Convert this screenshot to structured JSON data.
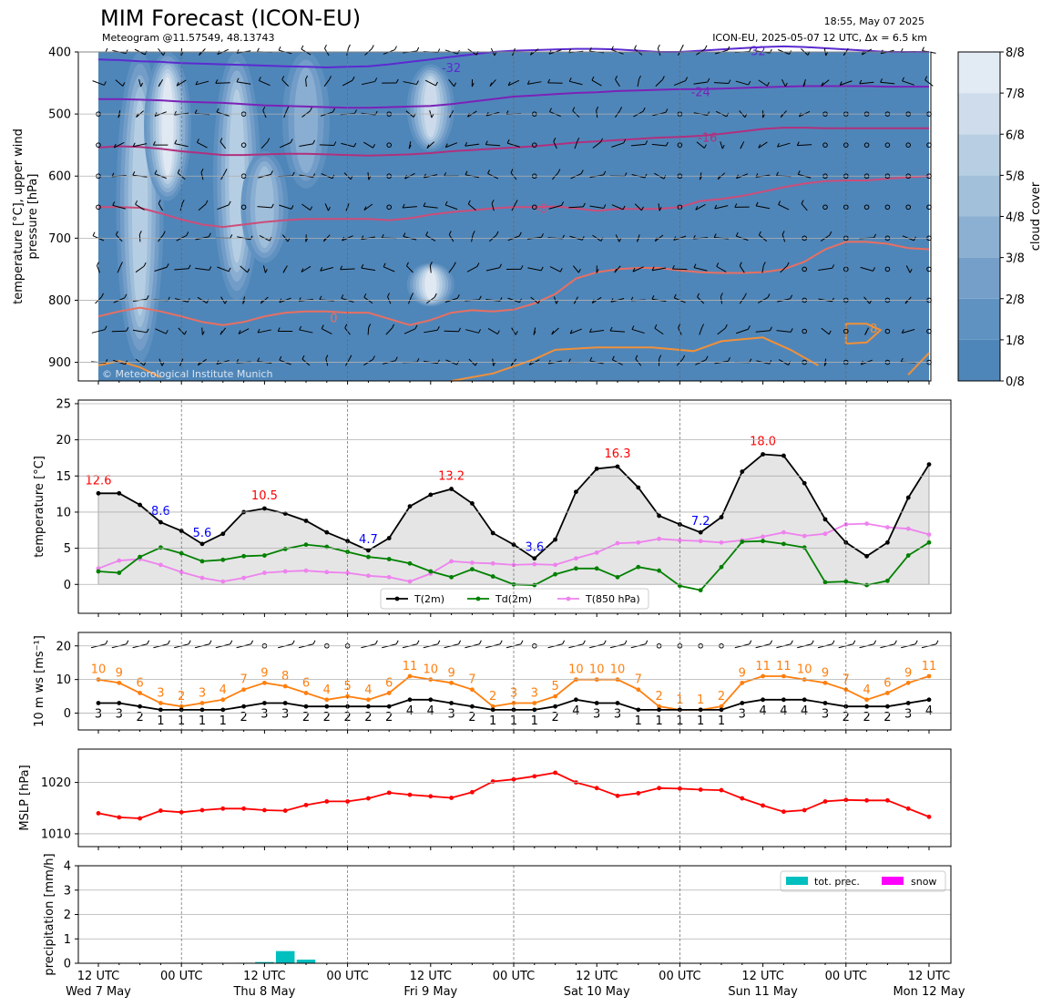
{
  "header": {
    "title": "MIM Forecast (ICON-EU)",
    "subtitle": "Meteogram @11.57549, 48.13743",
    "timestamp": "18:55, May 07 2025",
    "model_info": "ICON-EU, 2025-05-07 12 UTC, Δx = 6.5 km",
    "copyright": "© Meteorological Institute Munich"
  },
  "colors": {
    "t2m": "#000000",
    "td2m": "#008000",
    "t850": "#ee82ee",
    "mslp": "#ff0000",
    "gust": "#ff7f0e",
    "wind": "#000000",
    "tmax_label": "#ff0000",
    "tmin_label": "#0000ff",
    "precip": "#00bfbf",
    "snow": "#ff00ff",
    "cloud_dark": "#4f86b9",
    "cloud_light": "#f4f8fb"
  },
  "time_axis": {
    "tick_labels": [
      "12 UTC",
      "00 UTC",
      "12 UTC",
      "00 UTC",
      "12 UTC",
      "00 UTC",
      "12 UTC",
      "00 UTC",
      "12 UTC",
      "00 UTC",
      "12 UTC"
    ],
    "day_labels": [
      "Wed 7 May",
      "Thu 8 May",
      "Fri 9 May",
      "Sat 10 May",
      "Sun 11 May",
      "Mon 12 May"
    ],
    "step_hours": 3,
    "hours": [
      0,
      3,
      6,
      9,
      12,
      15,
      18,
      21,
      24,
      27,
      30,
      33,
      36,
      39,
      42,
      45,
      48,
      51,
      54,
      57,
      60,
      63,
      66,
      69,
      72,
      75,
      78,
      81,
      84,
      87,
      90,
      93,
      96,
      99,
      102,
      105,
      108,
      111,
      114,
      117,
      120
    ]
  },
  "chart_data": [
    {
      "type": "heatmap",
      "ylabel": "temperature [°C], upper wind\npressure [hPa]",
      "ylim": [
        930,
        400
      ],
      "yticks": [
        400,
        500,
        600,
        700,
        800,
        900
      ],
      "colorbar_label": "cloud cover",
      "colorbar_ticks": [
        "0/8",
        "1/8",
        "2/8",
        "3/8",
        "4/8",
        "5/8",
        "6/8",
        "7/8",
        "8/8"
      ],
      "isotherm_labels": [
        {
          "value": -32,
          "label": "-32",
          "color": "#5b2bd0"
        },
        {
          "value": -24,
          "label": "-24",
          "color": "#7a22b8"
        },
        {
          "value": -16,
          "label": "-16",
          "color": "#b0307e"
        },
        {
          "value": -8,
          "label": "-8",
          "color": "#cc4d7a"
        },
        {
          "value": 0,
          "label": "0",
          "color": "#e86f62"
        },
        {
          "value": 8,
          "label": "8",
          "color": "#f0903a"
        }
      ],
      "cloud_patches": [
        {
          "hour": 6,
          "p_top": 400,
          "p_bot": 900,
          "cover": 5
        },
        {
          "hour": 10,
          "p_top": 400,
          "p_bot": 640,
          "cover": 7
        },
        {
          "hour": 20,
          "p_top": 400,
          "p_bot": 800,
          "cover": 5
        },
        {
          "hour": 24,
          "p_top": 560,
          "p_bot": 740,
          "cover": 4
        },
        {
          "hour": 30,
          "p_top": 400,
          "p_bot": 620,
          "cover": 3
        },
        {
          "hour": 48,
          "p_top": 420,
          "p_bot": 560,
          "cover": 6
        },
        {
          "hour": 48,
          "p_top": 740,
          "p_bot": 810,
          "cover": 7
        }
      ],
      "isotherms": [
        {
          "value": -32,
          "p": [
            412,
            413,
            415,
            416,
            418,
            419,
            420,
            421,
            422,
            423,
            424,
            425,
            424,
            423,
            420,
            416,
            412,
            408,
            404,
            400,
            398,
            397,
            396,
            395,
            395,
            396,
            398,
            400,
            400,
            398,
            396,
            394,
            392,
            391,
            392,
            394,
            396,
            398,
            400,
            400,
            400
          ]
        },
        {
          "value": -24,
          "p": [
            476,
            476,
            477,
            478,
            480,
            481,
            482,
            484,
            486,
            487,
            488,
            489,
            490,
            490,
            489,
            488,
            487,
            484,
            480,
            476,
            472,
            470,
            468,
            466,
            465,
            463,
            462,
            461,
            460,
            460,
            459,
            458,
            457,
            456,
            455,
            455,
            455,
            455,
            456,
            456,
            456
          ]
        },
        {
          "value": -16,
          "p": [
            554,
            552,
            553,
            556,
            560,
            563,
            566,
            566,
            565,
            564,
            564,
            565,
            566,
            567,
            566,
            565,
            563,
            560,
            558,
            556,
            554,
            552,
            549,
            546,
            544,
            542,
            540,
            538,
            537,
            535,
            532,
            528,
            524,
            522,
            522,
            523,
            523,
            523,
            523,
            523,
            523
          ]
        },
        {
          "value": -8,
          "p": [
            650,
            650,
            651,
            660,
            670,
            678,
            682,
            678,
            674,
            671,
            669,
            669,
            669,
            669,
            671,
            668,
            662,
            658,
            655,
            652,
            650,
            650,
            649,
            652,
            656,
            653,
            653,
            653,
            650,
            640,
            637,
            632,
            625,
            618,
            612,
            608,
            607,
            607,
            604,
            602,
            600
          ]
        },
        {
          "value": 0,
          "p": [
            826,
            818,
            812,
            818,
            826,
            835,
            840,
            835,
            826,
            820,
            818,
            818,
            820,
            820,
            830,
            840,
            832,
            820,
            816,
            818,
            815,
            805,
            790,
            765,
            755,
            750,
            748,
            748,
            752,
            755,
            756,
            756,
            755,
            750,
            738,
            718,
            706,
            706,
            709,
            716,
            718
          ]
        }
      ],
      "wind_barbs": {
        "levels": [
          400,
          450,
          500,
          550,
          600,
          650,
          700,
          750,
          800,
          850,
          900
        ],
        "calm_symbol": "o"
      }
    },
    {
      "type": "line",
      "ylabel": "temperature [°C]",
      "ylim": [
        -4,
        25.5
      ],
      "yticks": [
        0,
        5,
        10,
        15,
        20,
        25
      ],
      "series": [
        {
          "name": "T(2m)",
          "color": "#000000",
          "values": [
            12.6,
            12.6,
            11.0,
            8.6,
            7.4,
            5.6,
            7.0,
            10.0,
            10.5,
            9.8,
            8.8,
            7.2,
            6.0,
            4.7,
            6.4,
            10.8,
            12.4,
            13.2,
            11.2,
            7.1,
            5.5,
            3.6,
            6.2,
            12.8,
            16.0,
            16.3,
            13.4,
            9.5,
            8.3,
            7.2,
            9.3,
            15.6,
            18.0,
            17.8,
            14.0,
            9.0,
            5.8,
            3.9,
            5.8,
            12.0,
            16.6
          ]
        },
        {
          "name": "Td(2m)",
          "color": "#008000",
          "values": [
            1.8,
            1.6,
            3.8,
            5.1,
            4.3,
            3.2,
            3.4,
            3.9,
            4.0,
            4.9,
            5.5,
            5.2,
            4.5,
            3.8,
            3.5,
            2.9,
            1.8,
            1.0,
            2.1,
            1.1,
            0.0,
            -0.1,
            1.4,
            2.2,
            2.2,
            1.0,
            2.4,
            1.9,
            -0.2,
            -0.8,
            2.4,
            5.9,
            6.0,
            5.6,
            5.1,
            0.3,
            0.4,
            -0.1,
            0.5,
            4.0,
            5.8
          ]
        },
        {
          "name": "T(850 hPa)",
          "color": "#ee82ee",
          "values": [
            2.2,
            3.3,
            3.5,
            2.7,
            1.7,
            0.9,
            0.4,
            0.9,
            1.6,
            1.8,
            1.9,
            1.7,
            1.6,
            1.2,
            1.0,
            0.4,
            1.5,
            3.2,
            3.0,
            2.9,
            2.7,
            2.8,
            2.7,
            3.6,
            4.4,
            5.7,
            5.8,
            6.3,
            6.1,
            6.0,
            5.8,
            6.1,
            6.6,
            7.2,
            6.7,
            7.0,
            8.3,
            8.4,
            7.9,
            7.7,
            6.9
          ]
        }
      ],
      "annotations": [
        {
          "hour": 0,
          "text": "12.6",
          "kind": "max"
        },
        {
          "hour": 9,
          "text": "8.6",
          "kind": "min"
        },
        {
          "hour": 15,
          "text": "5.6",
          "kind": "min"
        },
        {
          "hour": 24,
          "text": "10.5",
          "kind": "max"
        },
        {
          "hour": 39,
          "text": "4.7",
          "kind": "min"
        },
        {
          "hour": 51,
          "text": "13.2",
          "kind": "max"
        },
        {
          "hour": 63,
          "text": "3.6",
          "kind": "min"
        },
        {
          "hour": 75,
          "text": "16.3",
          "kind": "max"
        },
        {
          "hour": 87,
          "text": "7.2",
          "kind": "min"
        },
        {
          "hour": 96,
          "text": "18.0",
          "kind": "max"
        }
      ],
      "legend": "lower-center",
      "grid": true
    },
    {
      "type": "line",
      "ylabel": "10 m ws [ms⁻¹]",
      "ylim": [
        -5,
        24
      ],
      "yticks": [
        0,
        10,
        20
      ],
      "series": [
        {
          "name": "gust",
          "color": "#ff7f0e",
          "values": [
            10,
            9,
            6,
            3,
            2,
            3,
            4,
            7,
            9,
            8,
            6,
            4,
            5,
            4,
            6,
            11,
            10,
            9,
            7,
            2,
            3,
            3,
            5,
            10,
            10,
            10,
            7,
            2,
            1,
            1,
            2,
            9,
            11,
            11,
            10,
            9,
            7,
            4,
            6,
            9,
            11
          ]
        },
        {
          "name": "ws",
          "color": "#000000",
          "values": [
            3,
            3,
            2,
            1,
            1,
            1,
            1,
            2,
            3,
            3,
            2,
            2,
            2,
            2,
            2,
            4,
            4,
            3,
            2,
            1,
            1,
            1,
            2,
            4,
            3,
            3,
            1,
            1,
            1,
            1,
            1,
            3,
            4,
            4,
            4,
            3,
            2,
            2,
            2,
            3,
            4
          ]
        }
      ],
      "grid": true
    },
    {
      "type": "line",
      "ylabel": "MSLP [hPa]",
      "ylim": [
        1007.5,
        1026.5
      ],
      "yticks": [
        1010,
        1020
      ],
      "series": [
        {
          "name": "MSLP",
          "color": "#ff0000",
          "values": [
            1014.0,
            1013.2,
            1013.0,
            1014.5,
            1014.2,
            1014.6,
            1014.9,
            1014.9,
            1014.6,
            1014.5,
            1015.6,
            1016.3,
            1016.3,
            1016.9,
            1018.0,
            1017.6,
            1017.3,
            1017.0,
            1018.1,
            1020.2,
            1020.6,
            1021.2,
            1021.9,
            1020.0,
            1018.9,
            1017.4,
            1017.9,
            1018.9,
            1018.8,
            1018.6,
            1018.5,
            1016.9,
            1015.5,
            1014.3,
            1014.6,
            1016.3,
            1016.6,
            1016.5,
            1016.5,
            1014.9,
            1013.3
          ]
        }
      ],
      "grid": true
    },
    {
      "type": "bar",
      "ylabel": "precipitation [mm/h]",
      "ylim": [
        0,
        4
      ],
      "yticks": [
        0,
        1,
        2,
        3,
        4
      ],
      "series": [
        {
          "name": "tot. prec.",
          "color": "#00bfbf",
          "values": [
            0,
            0,
            0,
            0,
            0,
            0,
            0,
            0.02,
            0.05,
            0.5,
            0.15,
            0,
            0,
            0,
            0,
            0,
            0,
            0,
            0,
            0,
            0,
            0,
            0,
            0,
            0,
            0,
            0,
            0,
            0,
            0,
            0,
            0,
            0,
            0,
            0,
            0,
            0,
            0,
            0,
            0,
            0
          ]
        },
        {
          "name": "snow",
          "color": "#ff00ff",
          "values": [
            0,
            0,
            0,
            0,
            0,
            0,
            0,
            0,
            0,
            0,
            0,
            0,
            0,
            0,
            0,
            0,
            0,
            0,
            0,
            0,
            0,
            0,
            0,
            0,
            0,
            0,
            0,
            0,
            0,
            0,
            0,
            0,
            0,
            0,
            0,
            0,
            0,
            0,
            0,
            0,
            0
          ]
        }
      ],
      "legend": "top-right",
      "grid": true
    }
  ]
}
